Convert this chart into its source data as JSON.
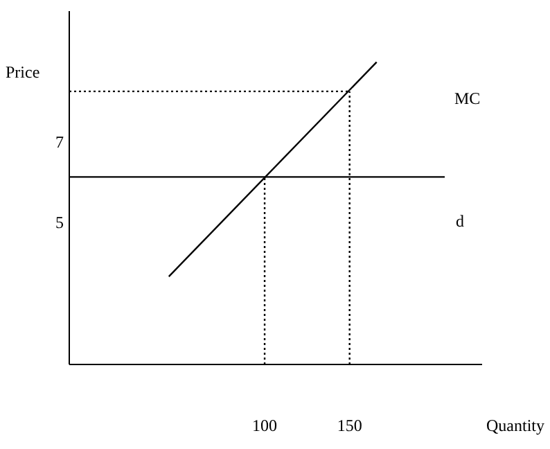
{
  "chart_data": {
    "type": "line",
    "xlabel": "Quantity",
    "ylabel": "Price",
    "xlim": [
      -15,
      228
    ],
    "ylim": [
      1.5,
      10.3
    ],
    "xticks": [
      100,
      150
    ],
    "yticks": [
      7,
      5
    ],
    "grid": false,
    "series": [
      {
        "name": "MC",
        "color": "#000000",
        "x": [
          43.6,
          165.9
        ],
        "values": [
          3.69,
          9.03
        ],
        "line_style": "solid"
      },
      {
        "name": "d",
        "color": "#000000",
        "x": [
          -15,
          206
        ],
        "values": [
          6.17,
          6.17
        ],
        "line_style": "solid"
      },
      {
        "color": "#000000",
        "x": [
          100,
          100
        ],
        "values": [
          1.5,
          6.17
        ],
        "line_style": "dotted"
      },
      {
        "color": "#000000",
        "x": [
          150,
          150
        ],
        "values": [
          1.5,
          8.3
        ],
        "line_style": "dotted"
      },
      {
        "color": "#000000",
        "x": [
          -15,
          150
        ],
        "values": [
          8.3,
          8.3
        ],
        "line_style": "dotted"
      }
    ]
  }
}
